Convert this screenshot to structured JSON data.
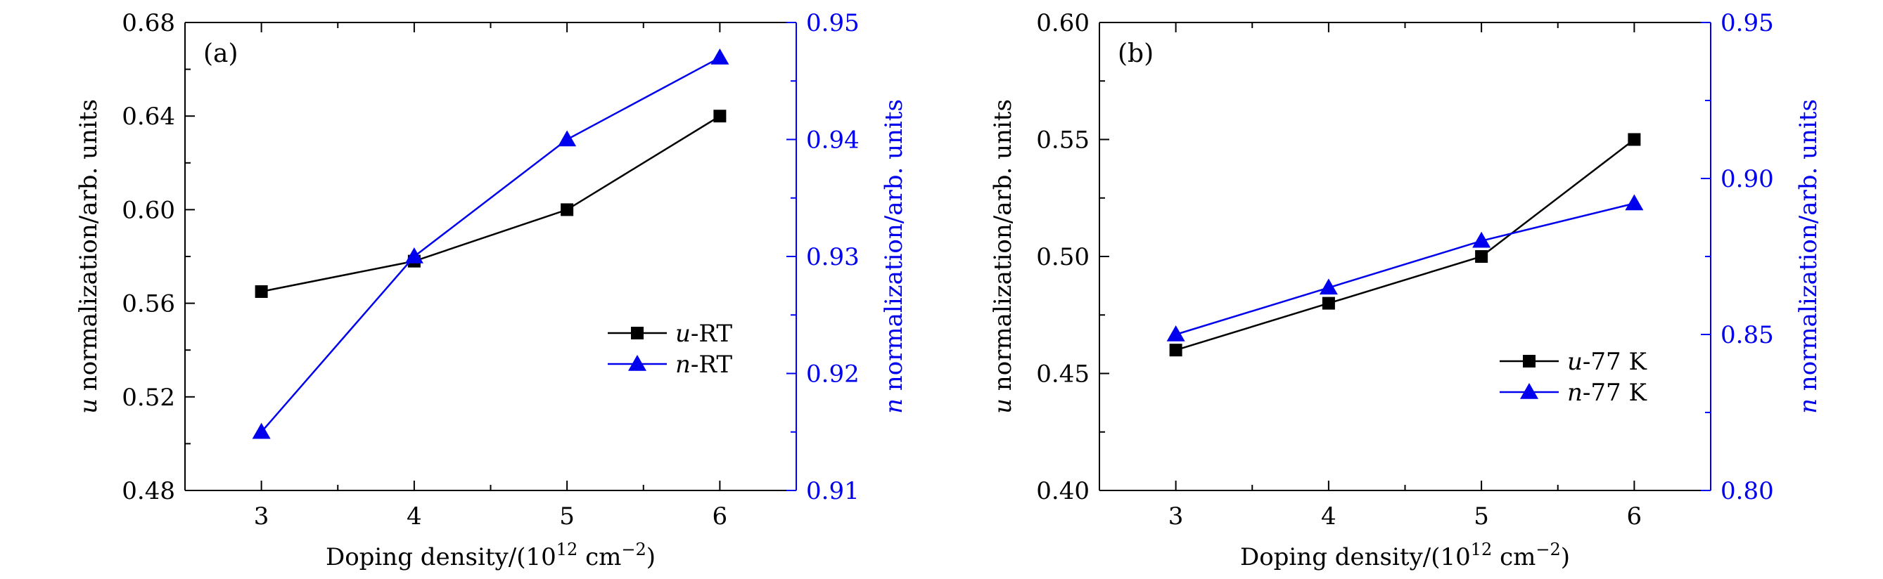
{
  "chart_data": [
    {
      "type": "line",
      "panel_label": "(a)",
      "xlabel": "Doping density/(10",
      "xlabel_sup1": "12",
      "xlabel_mid": " cm",
      "xlabel_sup2": "−2",
      "xlabel_end": ")",
      "ylabel_left_var": "u",
      "ylabel_left_text": " normalization/arb. units",
      "ylabel_right_var": "n",
      "ylabel_right_text": " normalization/arb. units",
      "x": [
        3,
        4,
        5,
        6
      ],
      "xlim": [
        2.5,
        6.5
      ],
      "x_ticks": [
        "3",
        "4",
        "5",
        "6"
      ],
      "ylim_left": [
        0.48,
        0.68
      ],
      "y_ticks_left": [
        "0.48",
        "0.52",
        "0.56",
        "0.60",
        "0.64",
        "0.68"
      ],
      "ylim_right": [
        0.91,
        0.95
      ],
      "y_ticks_right": [
        "0.91",
        "0.92",
        "0.93",
        "0.94",
        "0.95"
      ],
      "legend_position": "center-right",
      "series": [
        {
          "name_var": "u",
          "name_rest": "-RT",
          "axis": "left",
          "marker": "square",
          "color": "#000000",
          "values": [
            0.565,
            0.578,
            0.6,
            0.64
          ]
        },
        {
          "name_var": "n",
          "name_rest": "-RT",
          "axis": "right",
          "marker": "triangle",
          "color": "#0000ee",
          "values": [
            0.915,
            0.93,
            0.94,
            0.947
          ]
        }
      ]
    },
    {
      "type": "line",
      "panel_label": "(b)",
      "xlabel": "Doping density/(10",
      "xlabel_sup1": "12",
      "xlabel_mid": " cm",
      "xlabel_sup2": "−2",
      "xlabel_end": ")",
      "ylabel_left_var": "u",
      "ylabel_left_text": " normalization/arb. units",
      "ylabel_right_var": "n",
      "ylabel_right_text": " normalization/arb. units",
      "x": [
        3,
        4,
        5,
        6
      ],
      "xlim": [
        2.5,
        6.5
      ],
      "x_ticks": [
        "3",
        "4",
        "5",
        "6"
      ],
      "ylim_left": [
        0.4,
        0.6
      ],
      "y_ticks_left": [
        "0.40",
        "0.45",
        "0.50",
        "0.55",
        "0.60"
      ],
      "ylim_right": [
        0.8,
        0.95
      ],
      "y_ticks_right": [
        "0.80",
        "0.85",
        "0.90",
        "0.95"
      ],
      "legend_position": "lower-right",
      "series": [
        {
          "name_var": "u",
          "name_rest": "-77 K",
          "axis": "left",
          "marker": "square",
          "color": "#000000",
          "values": [
            0.46,
            0.48,
            0.5,
            0.55
          ]
        },
        {
          "name_var": "n",
          "name_rest": "-77 K",
          "axis": "right",
          "marker": "triangle",
          "color": "#0000ee",
          "values": [
            0.85,
            0.865,
            0.88,
            0.892
          ]
        }
      ]
    }
  ]
}
